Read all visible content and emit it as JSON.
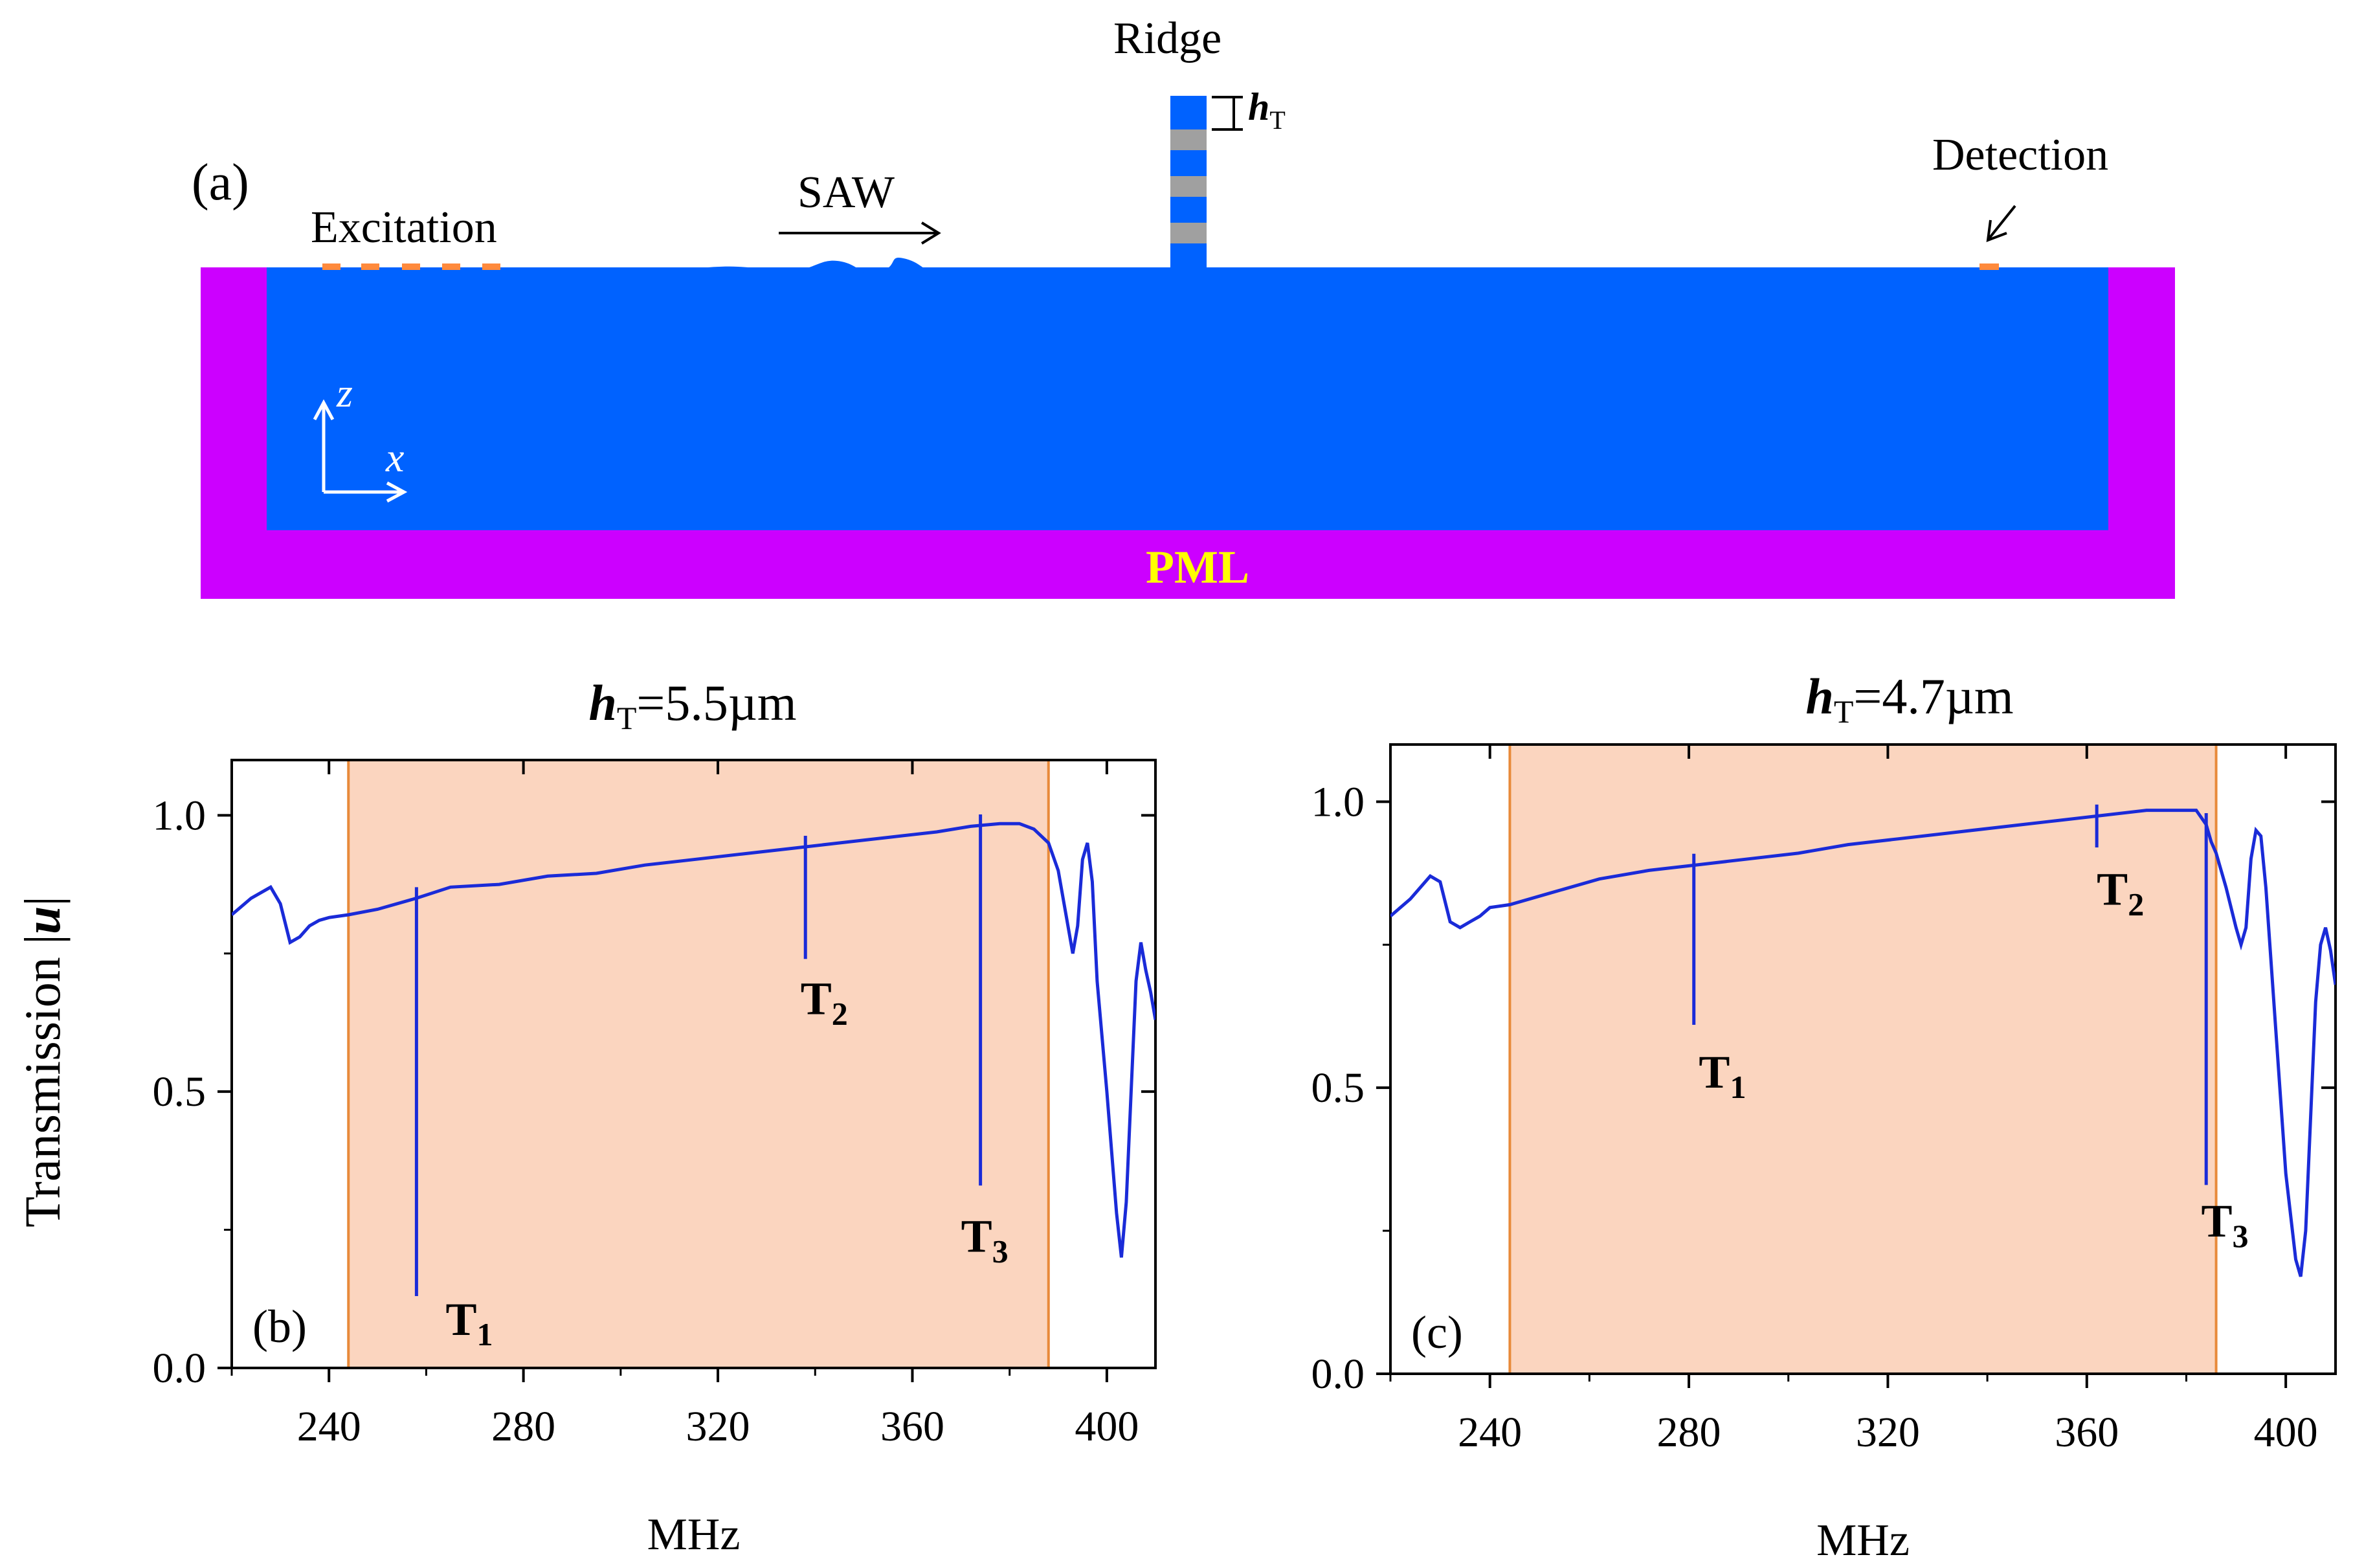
{
  "panel_a": {
    "label": "(a)",
    "ridge_label": "Ridge",
    "ht_label_main": "h",
    "ht_label_sub": "T",
    "excitation_label": "Excitation",
    "saw_label": "SAW",
    "detection_label": "Detection",
    "pml_label": "PML",
    "axis_z": "z",
    "axis_x": "x",
    "colors": {
      "substrate": "#0062ff",
      "pml": "#cc00ff",
      "pml_text": "#ffff00",
      "electrode": "#ff8a3c",
      "ridge_gray": "#a0a0a0"
    }
  },
  "chart_data": [
    {
      "type": "line",
      "panel_label": "(b)",
      "title_main": "h",
      "title_sub": "T",
      "title_rest": "=5.5µm",
      "xlabel": "MHz",
      "ylabel": "Transmission |u|",
      "xlim": [
        220,
        410
      ],
      "ylim": [
        0,
        1.1
      ],
      "xticks": [
        240,
        280,
        320,
        360,
        400
      ],
      "yticks": [
        0.0,
        0.5,
        1.0
      ],
      "ytick_labels": [
        "0.0",
        "0.5",
        "1.0"
      ],
      "band": [
        244,
        388
      ],
      "band_color": "#fbd5bf",
      "line_color": "#1a2bd8",
      "x": [
        220,
        224,
        228,
        230,
        232,
        234,
        236,
        238,
        240,
        244,
        250,
        258,
        265,
        275,
        285,
        295,
        305,
        315,
        325,
        335,
        345,
        355,
        365,
        372,
        378,
        382,
        385,
        388,
        390,
        392,
        393,
        394,
        395,
        396,
        397,
        398,
        400,
        402,
        403,
        404,
        405,
        406,
        407,
        408,
        409,
        410
      ],
      "values": [
        0.82,
        0.85,
        0.87,
        0.84,
        0.77,
        0.78,
        0.8,
        0.81,
        0.815,
        0.82,
        0.83,
        0.85,
        0.87,
        0.875,
        0.89,
        0.895,
        0.91,
        0.92,
        0.93,
        0.94,
        0.95,
        0.96,
        0.97,
        0.98,
        0.985,
        0.985,
        0.975,
        0.95,
        0.9,
        0.8,
        0.75,
        0.8,
        0.92,
        0.95,
        0.88,
        0.7,
        0.5,
        0.28,
        0.2,
        0.3,
        0.5,
        0.7,
        0.77,
        0.72,
        0.68,
        0.63
      ],
      "dips": [
        {
          "name": "T1",
          "x": 258,
          "y": 0.13
        },
        {
          "name": "T2",
          "x": 338,
          "y": 0.74
        },
        {
          "name": "T3",
          "x": 374,
          "y": 0.33
        }
      ],
      "dip_labels": [
        {
          "main": "T",
          "sub": "1",
          "x": 264,
          "y": 0.06
        },
        {
          "main": "T",
          "sub": "2",
          "x": 337,
          "y": 0.64
        },
        {
          "main": "T",
          "sub": "3",
          "x": 370,
          "y": 0.21
        }
      ]
    },
    {
      "type": "line",
      "panel_label": "(c)",
      "title_main": "h",
      "title_sub": "T",
      "title_rest": "=4.7µm",
      "xlabel": "MHz",
      "ylabel": "",
      "xlim": [
        220,
        410
      ],
      "ylim": [
        0,
        1.1
      ],
      "xticks": [
        240,
        280,
        320,
        360,
        400
      ],
      "yticks": [
        0.0,
        0.5,
        1.0
      ],
      "ytick_labels": [
        "0.0",
        "0.5",
        "1.0"
      ],
      "band": [
        244,
        386
      ],
      "band_color": "#fbd5bf",
      "line_color": "#1a2bd8",
      "x": [
        220,
        224,
        228,
        230,
        232,
        234,
        236,
        238,
        240,
        244,
        252,
        262,
        272,
        282,
        292,
        302,
        312,
        322,
        332,
        342,
        352,
        362,
        372,
        378,
        382,
        384,
        385,
        386,
        388,
        390,
        391,
        392,
        393,
        394,
        395,
        396,
        398,
        400,
        402,
        403,
        404,
        405,
        406,
        407,
        408,
        409,
        410
      ],
      "values": [
        0.8,
        0.83,
        0.87,
        0.86,
        0.79,
        0.78,
        0.79,
        0.8,
        0.815,
        0.82,
        0.84,
        0.865,
        0.88,
        0.89,
        0.9,
        0.91,
        0.925,
        0.935,
        0.945,
        0.955,
        0.965,
        0.975,
        0.985,
        0.985,
        0.985,
        0.96,
        0.93,
        0.91,
        0.85,
        0.78,
        0.75,
        0.78,
        0.9,
        0.95,
        0.94,
        0.85,
        0.6,
        0.35,
        0.2,
        0.17,
        0.25,
        0.45,
        0.65,
        0.75,
        0.78,
        0.74,
        0.68
      ],
      "dips": [
        {
          "name": "T1",
          "x": 281,
          "y": 0.61
        },
        {
          "name": "T2",
          "x": 362,
          "y": 0.92
        },
        {
          "name": "T3",
          "x": 384,
          "y": 0.33
        }
      ],
      "dip_labels": [
        {
          "main": "T",
          "sub": "1",
          "x": 282,
          "y": 0.5
        },
        {
          "main": "T",
          "sub": "2",
          "x": 362,
          "y": 0.82
        },
        {
          "main": "T",
          "sub": "3",
          "x": 383,
          "y": 0.24
        }
      ]
    }
  ]
}
